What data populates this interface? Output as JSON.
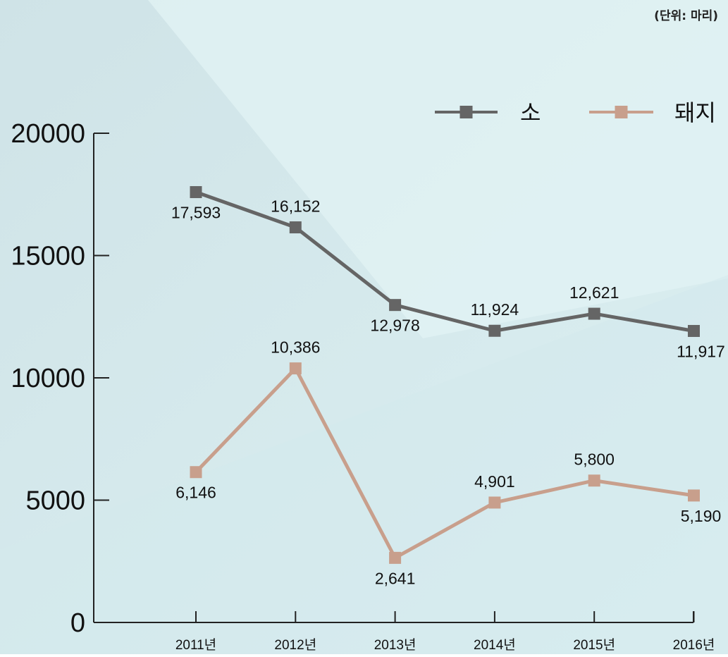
{
  "unit_label": "(단위: 마리)",
  "colors": {
    "background": "#d9eef0",
    "cow": "#656565",
    "pig": "#c89f8c",
    "axis": "#222222",
    "text": "#111111"
  },
  "chart_data": {
    "type": "line",
    "title": "",
    "xlabel": "",
    "ylabel": "",
    "unit": "(단위: 마리)",
    "categories": [
      "2011년",
      "2012년",
      "2013년",
      "2014년",
      "2015년",
      "2016년"
    ],
    "ylim": [
      0,
      20000
    ],
    "yticks": [
      "0",
      "5000",
      "10000",
      "15000",
      "20000"
    ],
    "ytick_values": [
      0,
      5000,
      10000,
      15000,
      20000
    ],
    "grid": false,
    "legend_position": "top-right",
    "series": [
      {
        "name": "소",
        "color": "#656565",
        "values": [
          17593,
          16152,
          12978,
          11924,
          12621,
          11917
        ],
        "labels": [
          "17,593",
          "16,152",
          "12,978",
          "11,924",
          "12,621",
          "11,917"
        ],
        "label_sides": [
          "below",
          "above",
          "below",
          "above",
          "above",
          "below"
        ]
      },
      {
        "name": "돼지",
        "color": "#c89f8c",
        "values": [
          6146,
          10386,
          2641,
          4901,
          5800,
          5190
        ],
        "labels": [
          "6,146",
          "10,386",
          "2,641",
          "4,901",
          "5,800",
          "5,190"
        ],
        "label_sides": [
          "below",
          "above",
          "below",
          "above",
          "above",
          "below"
        ]
      }
    ]
  }
}
